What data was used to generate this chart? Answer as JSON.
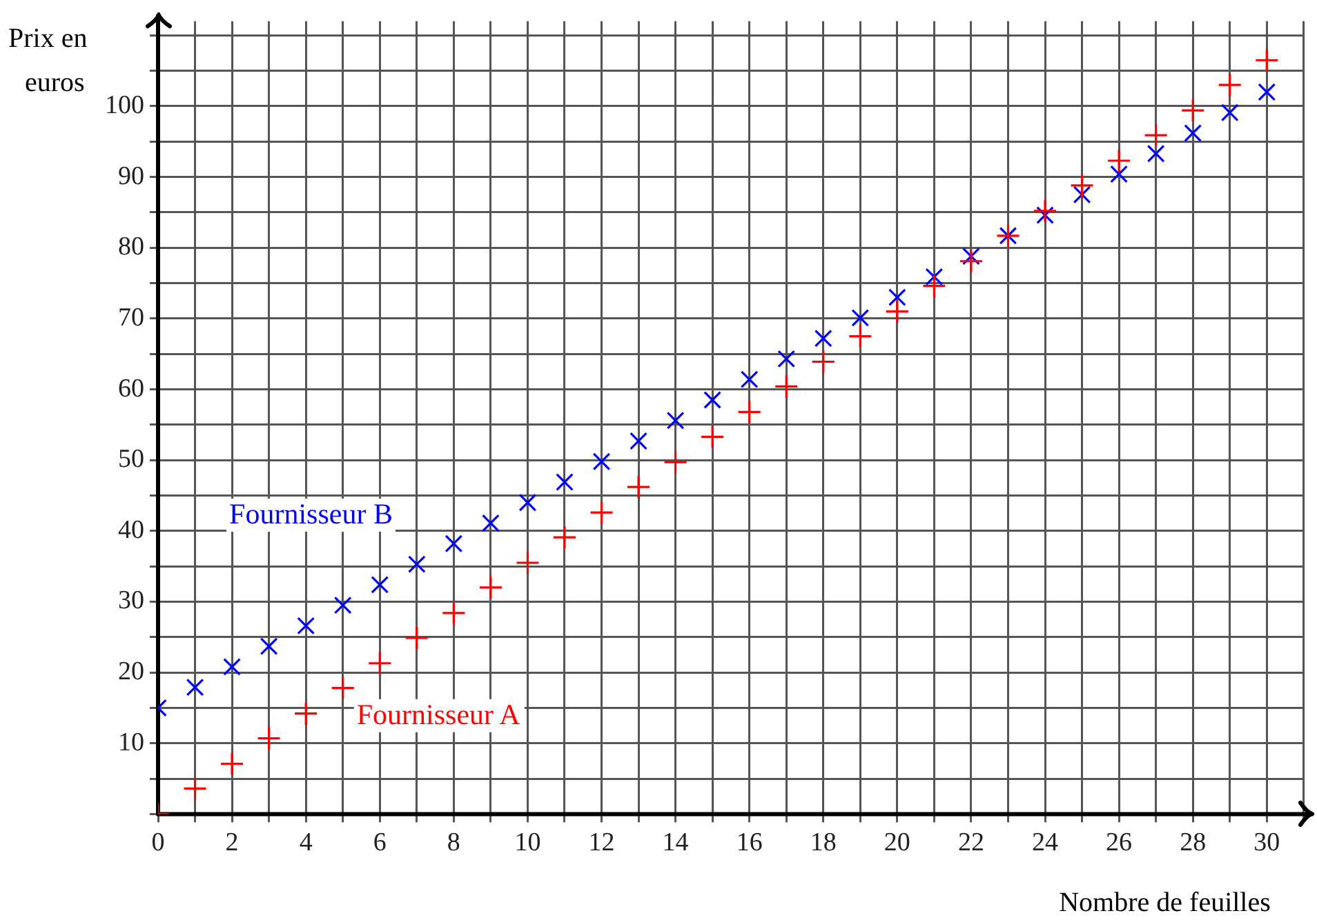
{
  "chart_data": {
    "type": "scatter",
    "xlabel": "Nombre de feuilles",
    "ylabel": "Prix en euros",
    "x": [
      0,
      1,
      2,
      3,
      4,
      5,
      6,
      7,
      8,
      9,
      10,
      11,
      12,
      13,
      14,
      15,
      16,
      17,
      18,
      19,
      20,
      21,
      22,
      23,
      24,
      25,
      26,
      27,
      28,
      29,
      30
    ],
    "series": [
      {
        "name": "Fournisseur A",
        "color": "#ff0000",
        "marker": "plus",
        "values": [
          0,
          3.6,
          7.1,
          10.7,
          14.2,
          17.8,
          21.3,
          24.9,
          28.4,
          32,
          35.5,
          39.1,
          42.6,
          46.2,
          49.7,
          53.3,
          56.8,
          60.4,
          63.9,
          67.5,
          71,
          74.6,
          78.1,
          81.7,
          85.2,
          88.8,
          92.3,
          95.9,
          99.4,
          103,
          106.5
        ]
      },
      {
        "name": "Fournisseur B",
        "color": "#0000ff",
        "marker": "cross",
        "values": [
          15,
          17.9,
          20.8,
          23.7,
          26.6,
          29.5,
          32.4,
          35.3,
          38.2,
          41.1,
          44,
          46.9,
          49.8,
          52.7,
          55.6,
          58.5,
          61.4,
          64.3,
          67.2,
          70.1,
          73,
          75.9,
          78.8,
          81.7,
          84.6,
          87.5,
          90.4,
          93.3,
          96.2,
          99.1,
          102
        ]
      }
    ],
    "xlim": [
      0,
      31
    ],
    "ylim": [
      0,
      112
    ],
    "xticks": [
      0,
      {
        "value": 1,
        "label": null
      },
      2,
      {
        "value": 3,
        "label": null
      },
      4,
      {
        "value": 5,
        "label": null
      },
      6,
      {
        "value": 7,
        "label": null
      },
      8,
      {
        "value": 9,
        "label": null
      },
      10,
      {
        "value": 11,
        "label": null
      },
      12,
      {
        "value": 13,
        "label": null
      },
      14,
      {
        "value": 15,
        "label": null
      },
      16,
      {
        "value": 17,
        "label": null
      },
      18,
      {
        "value": 19,
        "label": null
      },
      20,
      {
        "value": 21,
        "label": null
      },
      22,
      {
        "value": 23,
        "label": null
      },
      24,
      {
        "value": 25,
        "label": null
      },
      26,
      {
        "value": 27,
        "label": null
      },
      28,
      {
        "value": 29,
        "label": null
      },
      30,
      {
        "value": 31,
        "label": null
      }
    ],
    "yticks": [
      {
        "value": 0,
        "label": null
      },
      {
        "value": 5,
        "label": null
      },
      10,
      {
        "value": 15,
        "label": null
      },
      20,
      {
        "value": 25,
        "label": null
      },
      30,
      {
        "value": 35,
        "label": null
      },
      40,
      {
        "value": 45,
        "label": null
      },
      50,
      {
        "value": 55,
        "label": null
      },
      60,
      {
        "value": 65,
        "label": null
      },
      70,
      {
        "value": 75,
        "label": null
      },
      80,
      {
        "value": 85,
        "label": null
      },
      90,
      {
        "value": 95,
        "label": null
      },
      100,
      {
        "value": 105,
        "label": null
      },
      {
        "value": 110,
        "label": null
      }
    ],
    "grid": true,
    "legend": false
  }
}
